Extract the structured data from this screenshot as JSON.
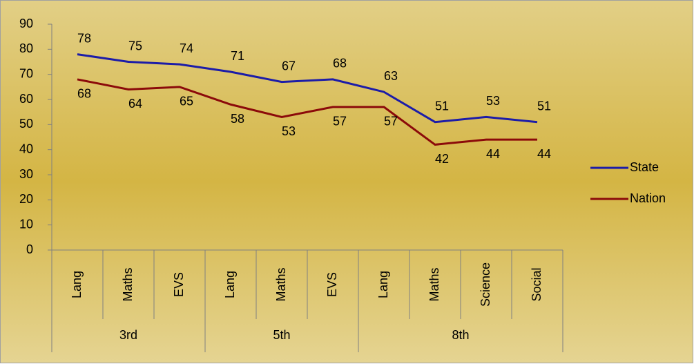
{
  "chart_data": {
    "type": "line",
    "categories": [
      "Lang",
      "Maths",
      "EVS",
      "Lang",
      "Maths",
      "EVS",
      "Lang",
      "Maths",
      "Science",
      "Social"
    ],
    "groups": [
      {
        "label": "3rd",
        "span": 3
      },
      {
        "label": "5th",
        "span": 3
      },
      {
        "label": "8th",
        "span": 4
      }
    ],
    "series": [
      {
        "name": "State",
        "color": "#1c1ca8",
        "values": [
          78,
          75,
          74,
          71,
          67,
          68,
          63,
          51,
          53,
          51
        ]
      },
      {
        "name": "Nation",
        "color": "#8b0a0a",
        "values": [
          68,
          64,
          65,
          58,
          53,
          57,
          57,
          42,
          44,
          44
        ]
      }
    ],
    "ylim": [
      0,
      90
    ],
    "yticks": [
      0,
      10,
      20,
      30,
      40,
      50,
      60,
      70,
      80,
      90
    ],
    "legend": "right"
  }
}
